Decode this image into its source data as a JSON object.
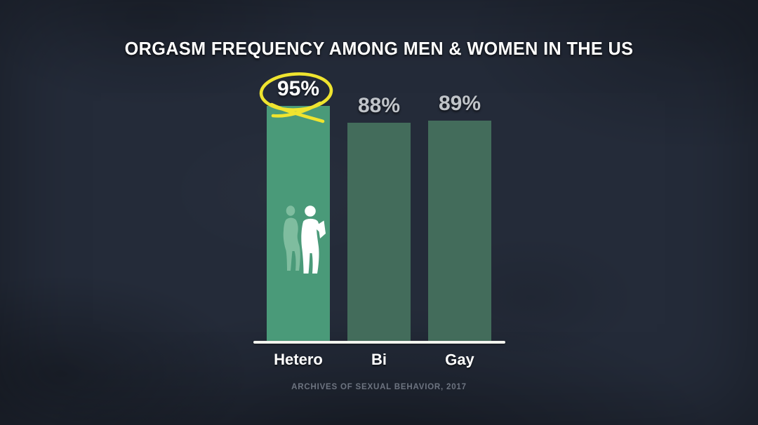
{
  "title": "ORGASM FREQUENCY AMONG MEN & WOMEN IN THE US",
  "source": "ARCHIVES OF SEXUAL BEHAVIOR, 2017",
  "chart_data": {
    "type": "bar",
    "title": "ORGASM FREQUENCY AMONG MEN & WOMEN IN THE US",
    "categories": [
      "Hetero",
      "Bi",
      "Gay"
    ],
    "values": [
      95,
      88,
      89
    ],
    "value_labels": [
      "95%",
      "88%",
      "89%"
    ],
    "unit": "%",
    "xlabel": "",
    "ylabel": "",
    "ylim": [
      0,
      100
    ],
    "grid": false,
    "legend": "none",
    "highlight_index": 0,
    "annotations": [
      "hand-drawn yellow circle around the 95% value of the Hetero bar",
      "white male and light-green female couple silhouettes inside the Hetero bar"
    ],
    "source": "ARCHIVES OF SEXUAL BEHAVIOR, 2017"
  },
  "colors": {
    "background": "#242b39",
    "bar_highlight": "#4a9a79",
    "bar_muted": "#436c5b",
    "annotation_yellow": "#efe42f",
    "value_highlight_text": "#ffffff",
    "value_muted_text": "#c0c4c9",
    "category_text": "#ffffff",
    "baseline": "#f2f3ee",
    "source_text": "#6d7480",
    "female_silhouette": "#7fbd9f",
    "male_silhouette": "#ffffff"
  },
  "icons": {
    "couple": "couple-silhouette-icon",
    "circle_annotation": "hand-drawn-circle-icon"
  }
}
